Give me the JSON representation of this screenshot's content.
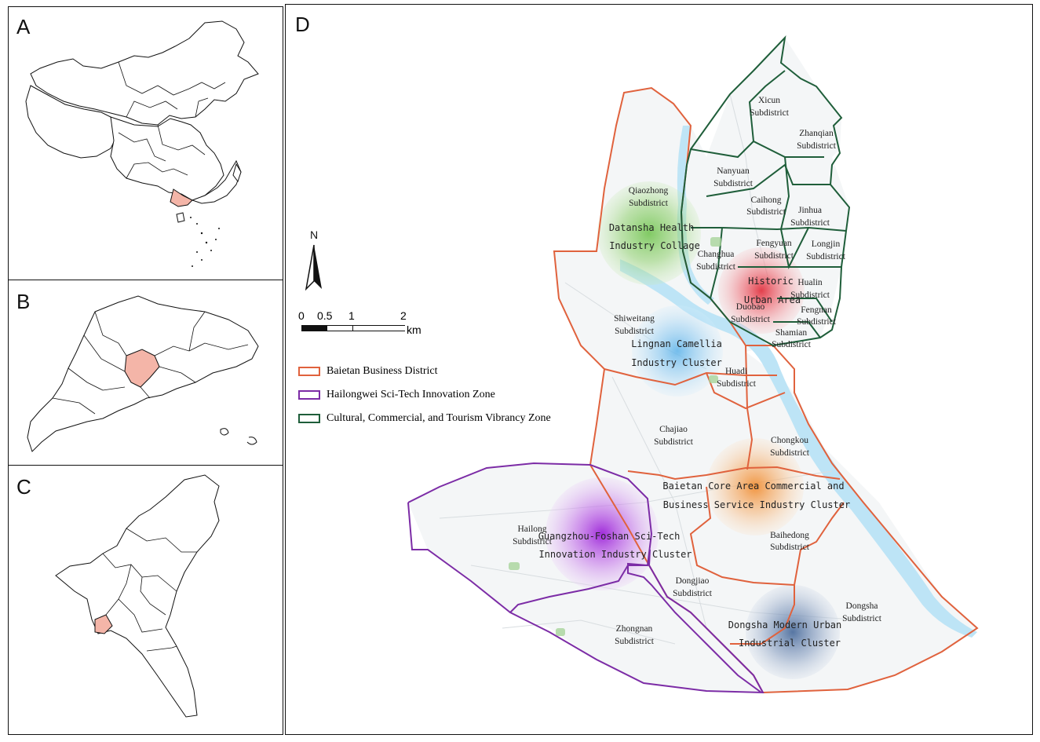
{
  "panels": {
    "a": {
      "letter": "A"
    },
    "b": {
      "letter": "B"
    },
    "c": {
      "letter": "C"
    },
    "d": {
      "letter": "D"
    }
  },
  "colors": {
    "baietan": "#e0623d",
    "hailongwei": "#7c2ca6",
    "vibrancy": "#1f5e3a",
    "river": "#b9e3f5",
    "highlight": "#f4b5a8"
  },
  "north_arrow": {
    "label": "N"
  },
  "scale_bar": {
    "ticks": [
      "0",
      "0.5",
      "1",
      "2"
    ],
    "unit": "km"
  },
  "legend": [
    {
      "label": "Baietan Business District",
      "color_key": "baietan"
    },
    {
      "label": "Hailongwei Sci-Tech Innovation Zone",
      "color_key": "hailongwei"
    },
    {
      "label": "Cultural, Commercial, and Tourism Vibrancy Zone",
      "color_key": "vibrancy"
    }
  ],
  "subdistricts": {
    "xicun": [
      "Xicun",
      "Subdistrict"
    ],
    "zhanqian": [
      "Zhanqian",
      "Subdistrict"
    ],
    "nanyuan": [
      "Nanyuan",
      "Subdistrict"
    ],
    "caihong": [
      "Caihong",
      "Subdistrict"
    ],
    "jinhua": [
      "Jinhua",
      "Subdistrict"
    ],
    "qiaozhong": [
      "Qiaozhong",
      "Subdistrict"
    ],
    "fengyuan": [
      "Fengyuan",
      "Subdistrict"
    ],
    "longjin": [
      "Longjin",
      "Subdistrict"
    ],
    "changhua": [
      "Changhua",
      "Subdistrict"
    ],
    "hualin": [
      "Hualin",
      "Subdistrict"
    ],
    "duobao": [
      "Duobao",
      "Subdistrict"
    ],
    "fengnan": [
      "Fengnan",
      "Subdistrict"
    ],
    "shamian": [
      "Shamian",
      "Subdistrict"
    ],
    "shiweitang": [
      "Shiweitang",
      "Subdistrict"
    ],
    "huadi": [
      "Huadi",
      "Subdistrict"
    ],
    "chajiao": [
      "Chajiao",
      "Subdistrict"
    ],
    "chongkou": [
      "Chongkou",
      "Subdistrict"
    ],
    "baihedong": [
      "Baihedong",
      "Subdistrict"
    ],
    "hailong": [
      "Hailong",
      "Subdistrict"
    ],
    "dongjiao": [
      "Dongjiao",
      "Subdistrict"
    ],
    "zhongnan": [
      "Zhongnan",
      "Subdistrict"
    ],
    "dongsha": [
      "Dongsha",
      "Subdistrict"
    ]
  },
  "clusters": {
    "datansha": [
      "Datansha Health",
      "Industry Collage"
    ],
    "historic": [
      "Historic",
      "Urban Area"
    ],
    "lingnan": [
      "Lingnan Camellia",
      "Industry Cluster"
    ],
    "baietan_core": [
      "Baietan Core Area Commercial and",
      "Business Service Industry Cluster"
    ],
    "guangzhou_foshan": [
      "Guangzhou-Foshan Sci-Tech",
      "Innovation Industry Cluster"
    ],
    "dongsha_modern": [
      "Dongsha Modern Urban",
      "Industrial Cluster"
    ]
  }
}
